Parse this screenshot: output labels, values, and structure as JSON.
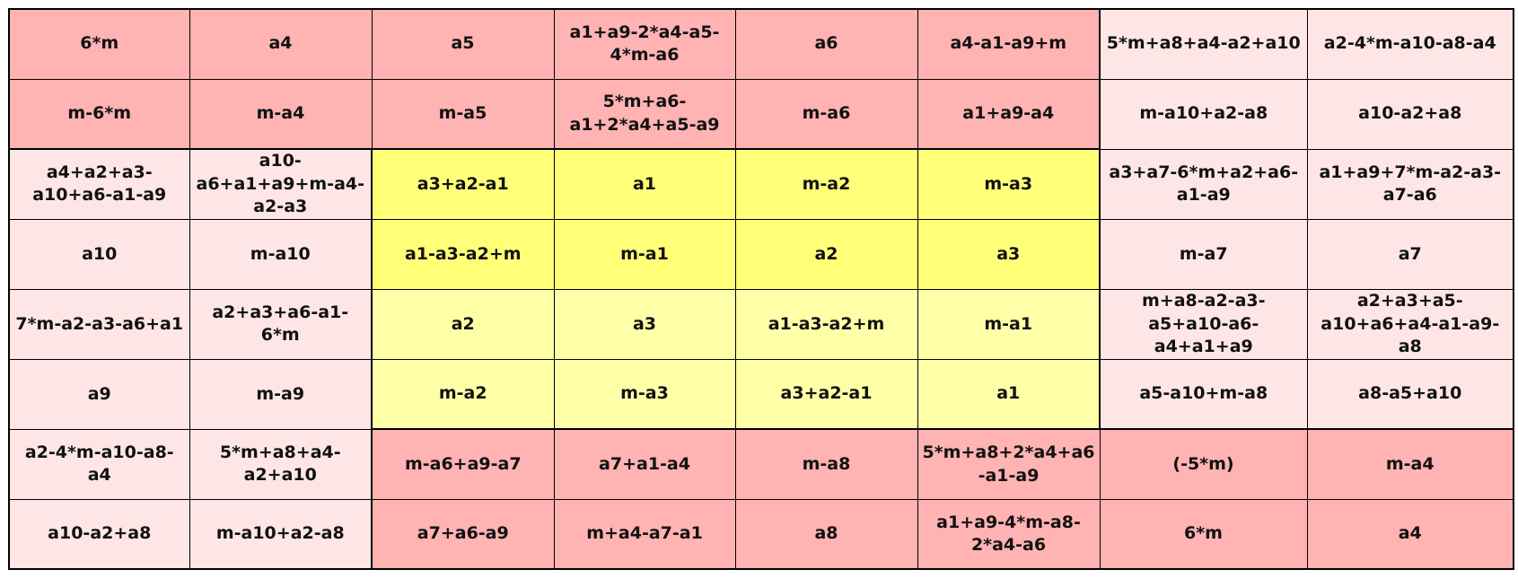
{
  "table": {
    "rows": [
      [
        "6*m",
        "a4",
        "a5",
        "a1+a9-2*a4-a5-4*m-a6",
        "a6",
        "a4-a1-a9+m",
        "5*m+a8+a4-a2+a10",
        "a2-4*m-a10-a8-a4"
      ],
      [
        "m-6*m",
        "m-a4",
        "m-a5",
        "5*m+a6-a1+2*a4+a5-a9",
        "m-a6",
        "a1+a9-a4",
        "m-a10+a2-a8",
        "a10-a2+a8"
      ],
      [
        "a4+a2+a3-a10+a6-a1-a9",
        "a10-a6+a1+a9+m-a4-a2-a3",
        "a3+a2-a1",
        "a1",
        "m-a2",
        "m-a3",
        "a3+a7-6*m+a2+a6-a1-a9",
        "a1+a9+7*m-a2-a3-a7-a6"
      ],
      [
        "a10",
        "m-a10",
        "a1-a3-a2+m",
        "m-a1",
        "a2",
        "a3",
        "m-a7",
        "a7"
      ],
      [
        "7*m-a2-a3-a6+a1",
        "a2+a3+a6-a1-6*m",
        "a2",
        "a3",
        "a1-a3-a2+m",
        "m-a1",
        "m+a8-a2-a3-a5+a10-a6-a4+a1+a9",
        "a2+a3+a5-a10+a6+a4-a1-a9-a8"
      ],
      [
        "a9",
        "m-a9",
        "m-a2",
        "m-a3",
        "a3+a2-a1",
        "a1",
        "a5-a10+m-a8",
        "a8-a5+a10"
      ],
      [
        "a2-4*m-a10-a8-a4",
        "5*m+a8+a4-a2+a10",
        "m-a6+a9-a7",
        "a7+a1-a4",
        "m-a8",
        "5*m+a8+2*a4+a6-a1-a9",
        "(-5*m)",
        "m-a4"
      ],
      [
        "a10-a2+a8",
        "m-a10+a2-a8",
        "a7+a6-a9",
        "m+a4-a7-a1",
        "a8",
        "a1+a9-4*m-a8-2*a4-a6",
        "6*m",
        "a4"
      ]
    ]
  }
}
